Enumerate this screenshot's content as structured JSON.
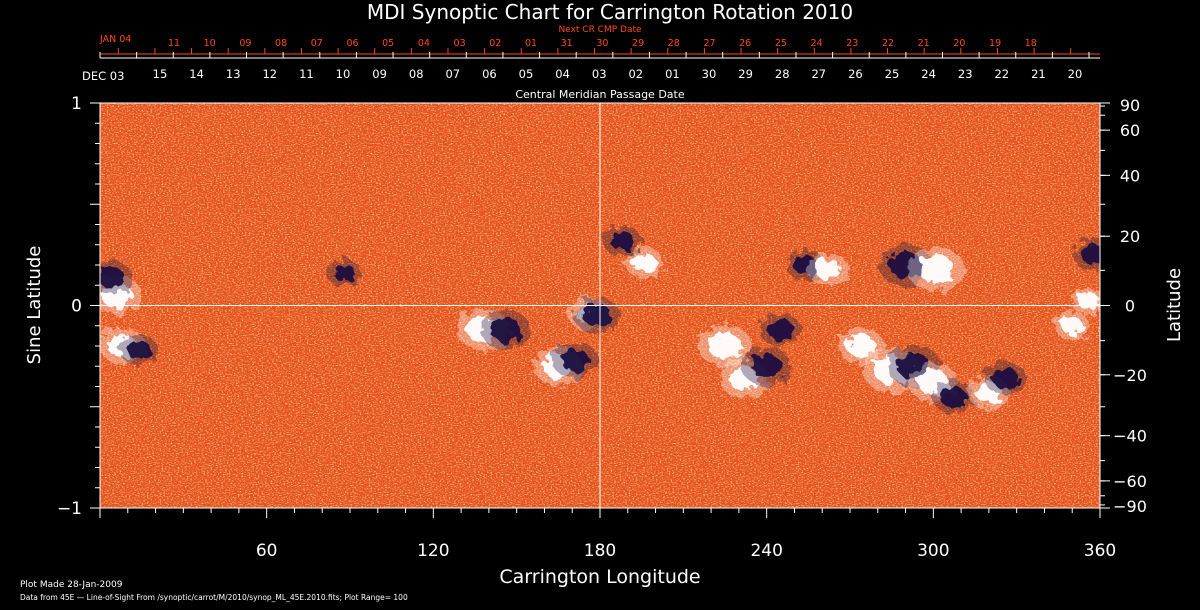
{
  "chart_data": {
    "type": "heatmap",
    "title": "MDI Synoptic Chart for Carrington Rotation 2010",
    "xlabel": "Carrington Longitude",
    "ylabel_left": "Sine Latitude",
    "ylabel_right": "Latitude",
    "top_axis_label": "Central Meridian Passage Date",
    "next_cr_label": "Next CR CMP Date",
    "xlim": [
      0,
      360
    ],
    "ylim": [
      -1,
      1
    ],
    "x_ticks": [
      60,
      120,
      180,
      240,
      300,
      360
    ],
    "y_ticks_left": [
      {
        "value": 1,
        "label": "1"
      },
      {
        "value": 0,
        "label": "0"
      },
      {
        "value": -1,
        "label": "−1"
      }
    ],
    "y_ticks_right": [
      "90",
      "60",
      "40",
      "20",
      "0",
      "−20",
      "−40",
      "−60",
      "−90"
    ],
    "y_ticks_right_deg": [
      90,
      60,
      40,
      20,
      0,
      -20,
      -40,
      -60,
      -90
    ],
    "cmp_month_label": "DEC 03",
    "cmp_dates": [
      "15",
      "14",
      "13",
      "12",
      "11",
      "10",
      "09",
      "08",
      "07",
      "06",
      "05",
      "04",
      "03",
      "02",
      "01",
      "30",
      "29",
      "28",
      "27",
      "26",
      "25",
      "24",
      "23",
      "22",
      "21",
      "20"
    ],
    "next_month_label": "JAN 04",
    "next_dates": [
      "11",
      "10",
      "09",
      "08",
      "07",
      "06",
      "05",
      "04",
      "03",
      "02",
      "01",
      "31",
      "30",
      "29",
      "28",
      "27",
      "26",
      "25",
      "24",
      "23",
      "22",
      "21",
      "20",
      "19",
      "18"
    ],
    "colors": {
      "background": "#000000",
      "map_base": "#e8501a",
      "positive": "#ffffff",
      "negative": "#1a1040",
      "axis": "#ffffff",
      "next_cr": "#ff4a10"
    },
    "features": [
      {
        "lon": 6,
        "slat": 0.05,
        "polarity": "positive",
        "strength": 0.8
      },
      {
        "lon": 4,
        "slat": 0.14,
        "polarity": "negative",
        "strength": 0.6
      },
      {
        "lon": 8,
        "slat": -0.2,
        "polarity": "positive",
        "strength": 0.7
      },
      {
        "lon": 14,
        "slat": -0.22,
        "polarity": "negative",
        "strength": 0.5
      },
      {
        "lon": 88,
        "slat": 0.16,
        "polarity": "negative",
        "strength": 0.4
      },
      {
        "lon": 138,
        "slat": -0.12,
        "polarity": "positive",
        "strength": 0.9
      },
      {
        "lon": 146,
        "slat": -0.12,
        "polarity": "negative",
        "strength": 0.8
      },
      {
        "lon": 165,
        "slat": -0.3,
        "polarity": "positive",
        "strength": 0.8
      },
      {
        "lon": 171,
        "slat": -0.27,
        "polarity": "negative",
        "strength": 0.7
      },
      {
        "lon": 176,
        "slat": -0.04,
        "polarity": "positive",
        "strength": 0.6
      },
      {
        "lon": 179,
        "slat": -0.05,
        "polarity": "negative",
        "strength": 0.7
      },
      {
        "lon": 188,
        "slat": 0.32,
        "polarity": "negative",
        "strength": 0.5
      },
      {
        "lon": 196,
        "slat": 0.21,
        "polarity": "positive",
        "strength": 0.5
      },
      {
        "lon": 225,
        "slat": -0.2,
        "polarity": "positive",
        "strength": 0.9
      },
      {
        "lon": 232,
        "slat": -0.36,
        "polarity": "positive",
        "strength": 0.8
      },
      {
        "lon": 240,
        "slat": -0.3,
        "polarity": "negative",
        "strength": 0.8
      },
      {
        "lon": 245,
        "slat": -0.12,
        "polarity": "negative",
        "strength": 0.6
      },
      {
        "lon": 254,
        "slat": 0.2,
        "polarity": "negative",
        "strength": 0.5
      },
      {
        "lon": 262,
        "slat": 0.18,
        "polarity": "positive",
        "strength": 0.6
      },
      {
        "lon": 274,
        "slat": -0.2,
        "polarity": "positive",
        "strength": 0.7
      },
      {
        "lon": 285,
        "slat": -0.32,
        "polarity": "positive",
        "strength": 1.0
      },
      {
        "lon": 293,
        "slat": -0.3,
        "polarity": "negative",
        "strength": 0.9
      },
      {
        "lon": 290,
        "slat": 0.2,
        "polarity": "negative",
        "strength": 0.9
      },
      {
        "lon": 301,
        "slat": 0.18,
        "polarity": "positive",
        "strength": 1.0
      },
      {
        "lon": 300,
        "slat": -0.38,
        "polarity": "positive",
        "strength": 0.8
      },
      {
        "lon": 307,
        "slat": -0.45,
        "polarity": "negative",
        "strength": 0.6
      },
      {
        "lon": 320,
        "slat": -0.43,
        "polarity": "positive",
        "strength": 0.6
      },
      {
        "lon": 326,
        "slat": -0.36,
        "polarity": "negative",
        "strength": 0.6
      },
      {
        "lon": 350,
        "slat": -0.1,
        "polarity": "positive",
        "strength": 0.4
      },
      {
        "lon": 358,
        "slat": 0.25,
        "polarity": "negative",
        "strength": 0.6
      },
      {
        "lon": 356,
        "slat": 0.02,
        "polarity": "positive",
        "strength": 0.4
      }
    ]
  },
  "footer": {
    "plot_made": "Plot Made 28-Jan-2009",
    "data_source": "Data from 45E — Line-of-Sight From /synoptic/carrot/M/2010/synop_ML_45E.2010.fits; Plot Range= 100"
  }
}
